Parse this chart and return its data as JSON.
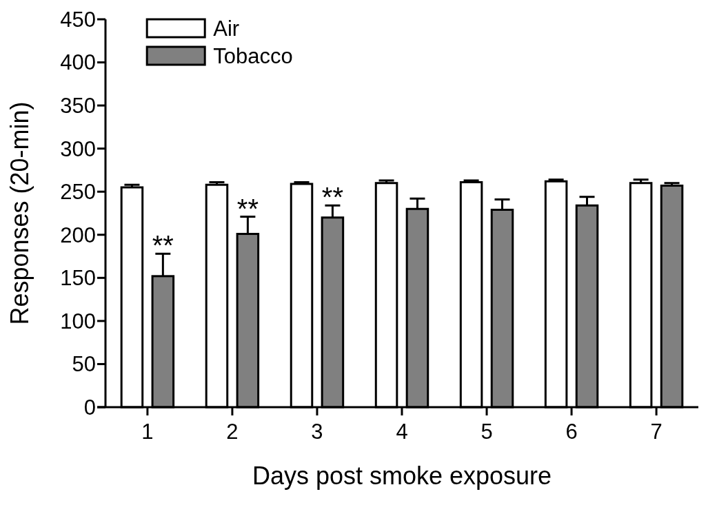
{
  "chart_data": {
    "type": "bar",
    "xlabel": "Days post smoke exposure",
    "ylabel": "Responses (20-min)",
    "categories": [
      "1",
      "2",
      "3",
      "4",
      "5",
      "6",
      "7"
    ],
    "series": [
      {
        "name": "Air",
        "color": "#ffffff",
        "values": [
          255,
          258,
          259,
          260,
          261,
          262,
          260
        ],
        "errors": [
          3,
          3,
          2,
          3,
          2,
          2,
          4
        ]
      },
      {
        "name": "Tobacco",
        "color": "#808080",
        "values": [
          152,
          201,
          220,
          230,
          229,
          234,
          257
        ],
        "errors": [
          26,
          20,
          14,
          12,
          12,
          10,
          3
        ]
      }
    ],
    "ylim": [
      0,
      450
    ],
    "yticks": [
      0,
      50,
      100,
      150,
      200,
      250,
      300,
      350,
      400,
      450
    ],
    "annotations": [
      "**",
      "**",
      "**"
    ],
    "legend": "top left",
    "grid": false
  }
}
